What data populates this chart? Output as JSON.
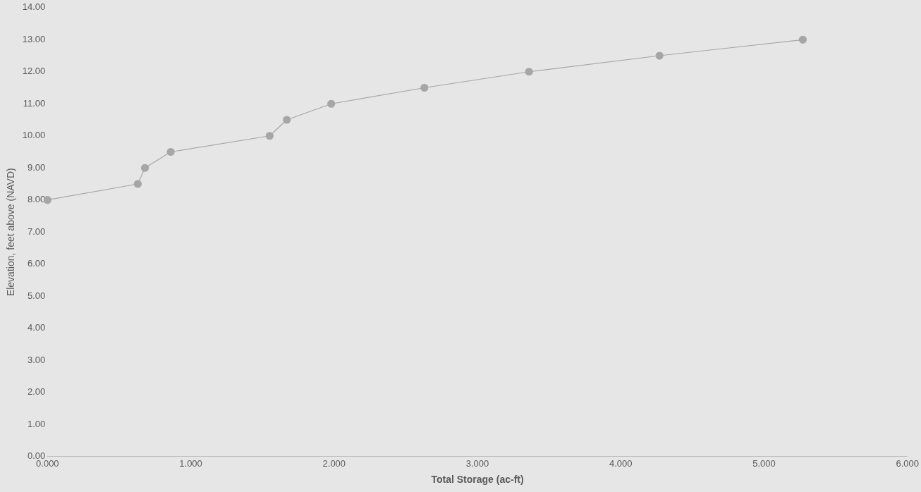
{
  "chart_data": {
    "type": "line",
    "xlabel": "Total Storage (ac-ft)",
    "ylabel": "Elevation, feet above (NAVD)",
    "x": [
      0,
      0.63,
      0.68,
      0.86,
      1.55,
      1.67,
      1.98,
      2.63,
      3.36,
      4.27,
      5.27
    ],
    "series": [
      {
        "color": "#a6a6a6",
        "values": [
          8.0,
          8.5,
          9.0,
          9.5,
          10.0,
          10.5,
          11.0,
          11.5,
          12.0,
          12.5,
          13.0
        ]
      }
    ],
    "xlim": [
      0,
      6
    ],
    "xticks": [
      {
        "value": 0,
        "label": "0.000"
      },
      {
        "value": 1,
        "label": "1.000"
      },
      {
        "value": 2,
        "label": "2.000"
      },
      {
        "value": 3,
        "label": "3.000"
      },
      {
        "value": 4,
        "label": "4.000"
      },
      {
        "value": 5,
        "label": "5.000"
      },
      {
        "value": 6,
        "label": "6.000"
      }
    ],
    "ylim": [
      0,
      14
    ],
    "yticks": [
      {
        "value": 0,
        "label": "0.00"
      },
      {
        "value": 1,
        "label": "1.00"
      },
      {
        "value": 2,
        "label": "2.00"
      },
      {
        "value": 3,
        "label": "3.00"
      },
      {
        "value": 4,
        "label": "4.00"
      },
      {
        "value": 5,
        "label": "5.00"
      },
      {
        "value": 6,
        "label": "6.00"
      },
      {
        "value": 7,
        "label": "7.00"
      },
      {
        "value": 8,
        "label": "8.00"
      },
      {
        "value": 9,
        "label": "9.00"
      },
      {
        "value": 10,
        "label": "10.00"
      },
      {
        "value": 11,
        "label": "11.00"
      },
      {
        "value": 12,
        "label": "12.00"
      },
      {
        "value": 13,
        "label": "13.00"
      },
      {
        "value": 14,
        "label": "14.00"
      }
    ],
    "grid": false,
    "legend": false,
    "marker": "circle",
    "line_style": "solid"
  }
}
